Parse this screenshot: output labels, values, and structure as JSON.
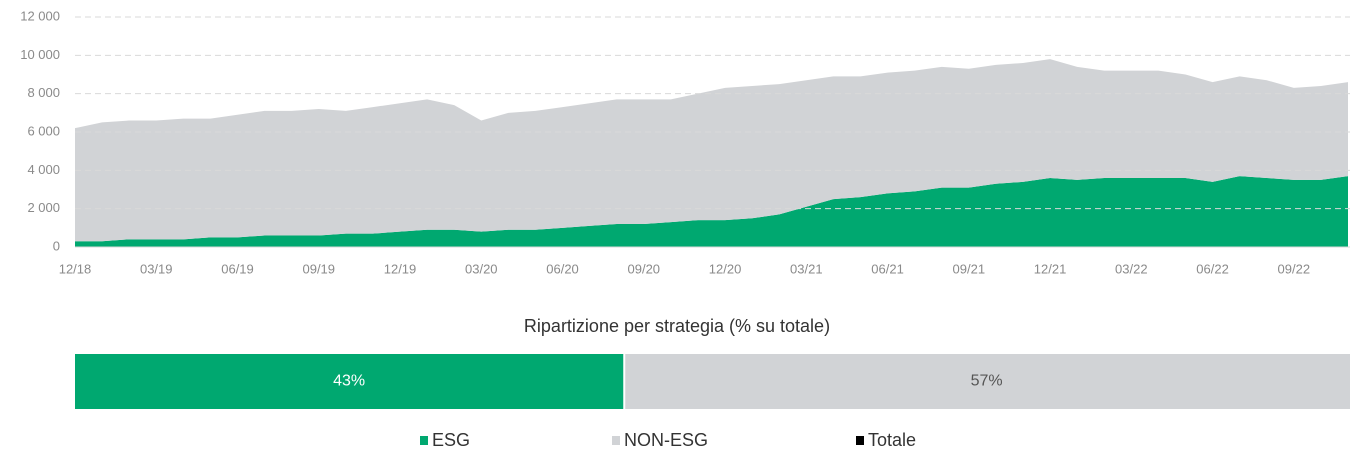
{
  "chart_data": [
    {
      "type": "stacked_area",
      "categories": [
        "12/18",
        null,
        null,
        "03/19",
        null,
        null,
        "06/19",
        null,
        null,
        "09/19",
        null,
        null,
        "12/19",
        null,
        null,
        "03/20",
        null,
        null,
        "06/20",
        null,
        null,
        "09/20",
        null,
        null,
        "12/20",
        null,
        null,
        "03/21",
        null,
        null,
        "06/21",
        null,
        null,
        "09/21",
        null,
        null,
        "12/21",
        null,
        null,
        "03/22",
        null,
        null,
        "06/22",
        null,
        null,
        "09/22",
        null,
        null
      ],
      "series": [
        {
          "name": "ESG",
          "color": "#00a870",
          "values": [
            300,
            300,
            400,
            400,
            400,
            500,
            500,
            600,
            600,
            600,
            700,
            700,
            800,
            900,
            900,
            800,
            900,
            900,
            1000,
            1100,
            1200,
            1200,
            1300,
            1400,
            1400,
            1500,
            1700,
            2100,
            2500,
            2600,
            2800,
            2900,
            3100,
            3100,
            3300,
            3400,
            3600,
            3500,
            3600,
            3600,
            3600,
            3600,
            3400,
            3700,
            3600,
            3500,
            3500,
            3700
          ]
        },
        {
          "name": "NON-ESG",
          "color": "#d1d3d6",
          "values": [
            5900,
            6200,
            6200,
            6200,
            6300,
            6200,
            6400,
            6500,
            6500,
            6600,
            6400,
            6600,
            6700,
            6800,
            6500,
            5800,
            6100,
            6200,
            6300,
            6400,
            6500,
            6500,
            6400,
            6600,
            6900,
            6900,
            6800,
            6600,
            6400,
            6300,
            6300,
            6300,
            6300,
            6200,
            6200,
            6200,
            6200,
            5900,
            5600,
            5600,
            5600,
            5400,
            5200,
            5200,
            5100,
            4800,
            4900,
            4900
          ]
        },
        {
          "name": "Totale",
          "color": "#000000"
        }
      ],
      "ylim": [
        0,
        12000
      ],
      "yticks": [
        {
          "value": 0,
          "label": "0"
        },
        {
          "value": 2000,
          "label": "2 000"
        },
        {
          "value": 4000,
          "label": "4 000"
        },
        {
          "value": 6000,
          "label": "6 000"
        },
        {
          "value": 8000,
          "label": "8 000"
        },
        {
          "value": 10000,
          "label": "10 000"
        },
        {
          "value": 12000,
          "label": "12 000"
        }
      ],
      "grid": true
    },
    {
      "type": "stacked_bar_100",
      "title": "Ripartizione per strategia (% su totale)",
      "series": [
        {
          "name": "ESG",
          "color": "#00a870",
          "values": [
            43
          ],
          "value_labels": [
            "43%"
          ]
        },
        {
          "name": "NON-ESG",
          "color": "#d1d3d6",
          "values": [
            57
          ],
          "value_labels": [
            "57%"
          ]
        }
      ]
    }
  ]
}
